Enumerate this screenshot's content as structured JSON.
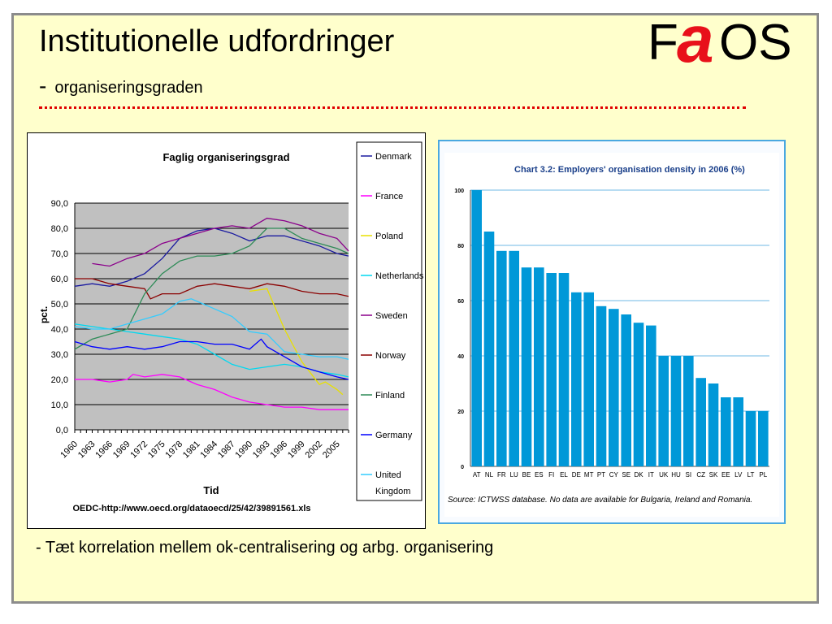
{
  "slide": {
    "title": "Institutionelle udfordringer",
    "subtitle_dash": "-",
    "subtitle": "organiseringsgraden",
    "logo_text": "FaOS",
    "bullet": "- Tæt korrelation mellem ok-centralisering og arbg. organisering"
  },
  "chart_data": [
    {
      "type": "line",
      "title": "Faglig organiseringsgrad",
      "xlabel": "Tid",
      "ylabel": "pct.",
      "source": "OEDC-http://www.oecd.org/dataoecd/25/42/39891561.xls",
      "ylim": [
        0,
        90
      ],
      "yticks": [
        "0,0",
        "10,0",
        "20,0",
        "30,0",
        "40,0",
        "50,0",
        "60,0",
        "70,0",
        "80,0",
        "90,0"
      ],
      "xlim": [
        1960,
        2007
      ],
      "xticks": [
        1960,
        1963,
        1966,
        1969,
        1972,
        1975,
        1978,
        1981,
        1984,
        1987,
        1990,
        1993,
        1996,
        1999,
        2002,
        2005
      ],
      "grid": true,
      "legend": "right",
      "series": [
        {
          "name": "Denmark",
          "color": "#1a1aa0",
          "points": [
            [
              1960,
              57
            ],
            [
              1963,
              58
            ],
            [
              1966,
              57
            ],
            [
              1969,
              59
            ],
            [
              1972,
              62
            ],
            [
              1975,
              68
            ],
            [
              1978,
              76
            ],
            [
              1981,
              79
            ],
            [
              1984,
              80
            ],
            [
              1987,
              78
            ],
            [
              1990,
              75
            ],
            [
              1993,
              77
            ],
            [
              1996,
              77
            ],
            [
              1999,
              75
            ],
            [
              2002,
              73
            ],
            [
              2005,
              70
            ],
            [
              2007,
              69
            ]
          ]
        },
        {
          "name": "France",
          "color": "#ff00ff",
          "points": [
            [
              1960,
              20
            ],
            [
              1963,
              20
            ],
            [
              1966,
              19
            ],
            [
              1969,
              20
            ],
            [
              1970,
              22
            ],
            [
              1972,
              21
            ],
            [
              1975,
              22
            ],
            [
              1978,
              21
            ],
            [
              1981,
              18
            ],
            [
              1984,
              16
            ],
            [
              1987,
              13
            ],
            [
              1990,
              11
            ],
            [
              1993,
              10
            ],
            [
              1996,
              9
            ],
            [
              1999,
              9
            ],
            [
              2002,
              8
            ],
            [
              2005,
              8
            ],
            [
              2007,
              8
            ]
          ]
        },
        {
          "name": "Poland",
          "color": "#e8e000",
          "points": [
            [
              1990,
              55
            ],
            [
              1993,
              56
            ],
            [
              1996,
              40
            ],
            [
              1999,
              27
            ],
            [
              2002,
              18
            ],
            [
              2003,
              19
            ],
            [
              2005,
              16
            ],
            [
              2006,
              14
            ]
          ]
        },
        {
          "name": "Netherlands",
          "color": "#00d8f0",
          "points": [
            [
              1960,
              42
            ],
            [
              1963,
              41
            ],
            [
              1966,
              40
            ],
            [
              1969,
              39
            ],
            [
              1972,
              38
            ],
            [
              1975,
              37
            ],
            [
              1978,
              36
            ],
            [
              1981,
              34
            ],
            [
              1984,
              30
            ],
            [
              1987,
              26
            ],
            [
              1990,
              24
            ],
            [
              1993,
              25
            ],
            [
              1996,
              26
            ],
            [
              1999,
              25
            ],
            [
              2002,
              23
            ],
            [
              2005,
              22
            ],
            [
              2007,
              21
            ]
          ]
        },
        {
          "name": "Sweden",
          "color": "#8b008b",
          "points": [
            [
              1963,
              66
            ],
            [
              1966,
              65
            ],
            [
              1969,
              68
            ],
            [
              1972,
              70
            ],
            [
              1975,
              74
            ],
            [
              1978,
              76
            ],
            [
              1981,
              78
            ],
            [
              1984,
              80
            ],
            [
              1987,
              81
            ],
            [
              1990,
              80
            ],
            [
              1993,
              84
            ],
            [
              1996,
              83
            ],
            [
              1999,
              81
            ],
            [
              2002,
              78
            ],
            [
              2005,
              76
            ],
            [
              2007,
              71
            ]
          ]
        },
        {
          "name": "Norway",
          "color": "#8b0000",
          "points": [
            [
              1960,
              60
            ],
            [
              1963,
              60
            ],
            [
              1966,
              58
            ],
            [
              1969,
              57
            ],
            [
              1972,
              56
            ],
            [
              1973,
              52
            ],
            [
              1975,
              54
            ],
            [
              1978,
              54
            ],
            [
              1981,
              57
            ],
            [
              1984,
              58
            ],
            [
              1987,
              57
            ],
            [
              1990,
              56
            ],
            [
              1993,
              58
            ],
            [
              1996,
              57
            ],
            [
              1999,
              55
            ],
            [
              2002,
              54
            ],
            [
              2005,
              54
            ],
            [
              2007,
              53
            ]
          ]
        },
        {
          "name": "Finland",
          "color": "#2e8b57",
          "points": [
            [
              1960,
              32
            ],
            [
              1963,
              36
            ],
            [
              1966,
              38
            ],
            [
              1969,
              40
            ],
            [
              1972,
              54
            ],
            [
              1975,
              62
            ],
            [
              1978,
              67
            ],
            [
              1981,
              69
            ],
            [
              1984,
              69
            ],
            [
              1987,
              70
            ],
            [
              1990,
              73
            ],
            [
              1993,
              80
            ],
            [
              1996,
              80
            ],
            [
              1999,
              76
            ],
            [
              2002,
              74
            ],
            [
              2005,
              72
            ],
            [
              2007,
              70
            ]
          ]
        },
        {
          "name": "Germany",
          "color": "#0000ff",
          "points": [
            [
              1960,
              35
            ],
            [
              1963,
              33
            ],
            [
              1966,
              32
            ],
            [
              1969,
              33
            ],
            [
              1972,
              32
            ],
            [
              1975,
              33
            ],
            [
              1978,
              35
            ],
            [
              1981,
              35
            ],
            [
              1984,
              34
            ],
            [
              1987,
              34
            ],
            [
              1990,
              32
            ],
            [
              1992,
              36
            ],
            [
              1993,
              33
            ],
            [
              1996,
              29
            ],
            [
              1999,
              25
            ],
            [
              2002,
              23
            ],
            [
              2005,
              21
            ],
            [
              2007,
              20
            ]
          ]
        },
        {
          "name": "United Kingdom",
          "color": "#33ccff",
          "points": [
            [
              1960,
              41
            ],
            [
              1963,
              40
            ],
            [
              1966,
              40
            ],
            [
              1969,
              42
            ],
            [
              1972,
              44
            ],
            [
              1975,
              46
            ],
            [
              1978,
              51
            ],
            [
              1980,
              52
            ],
            [
              1981,
              51
            ],
            [
              1984,
              48
            ],
            [
              1987,
              45
            ],
            [
              1990,
              39
            ],
            [
              1993,
              38
            ],
            [
              1996,
              31
            ],
            [
              1999,
              30
            ],
            [
              2002,
              29
            ],
            [
              2005,
              29
            ],
            [
              2007,
              28
            ]
          ]
        }
      ]
    },
    {
      "type": "bar",
      "title": "Chart 3.2: Employers' organisation density in 2006 (%)",
      "source": "Source: ICTWSS database. No data are available for Bulgaria, Ireland and Romania.",
      "ylim": [
        0,
        100
      ],
      "yticks": [
        0,
        20,
        40,
        60,
        80,
        100
      ],
      "grid": true,
      "color": "#0098d8",
      "categories": [
        "AT",
        "NL",
        "FR",
        "LU",
        "BE",
        "ES",
        "FI",
        "EL",
        "DE",
        "MT",
        "PT",
        "CY",
        "SE",
        "DK",
        "IT",
        "UK",
        "HU",
        "SI",
        "CZ",
        "SK",
        "EE",
        "LV",
        "LT",
        "PL"
      ],
      "values": [
        100,
        85,
        78,
        78,
        72,
        72,
        70,
        70,
        63,
        63,
        58,
        57,
        55,
        52,
        51,
        40,
        40,
        40,
        32,
        30,
        25,
        25,
        20,
        20
      ]
    }
  ]
}
